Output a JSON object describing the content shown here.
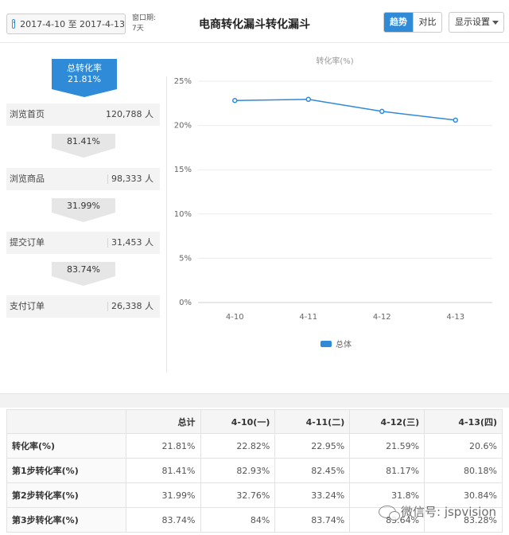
{
  "header": {
    "date_range": "2017-4-10 至 2017-4-13",
    "window_label": "窗口期:",
    "window_value": "7天",
    "title": "电商转化漏斗转化漏斗",
    "tab_trend": "趋势",
    "tab_compare": "对比",
    "settings": "显示设置"
  },
  "funnel": {
    "total_label": "总转化率",
    "total_rate": "21.81%",
    "stages": [
      {
        "name": "浏览首页",
        "value": "120,788 人"
      },
      {
        "name": "浏览商品",
        "value": "98,333 人"
      },
      {
        "name": "提交订单",
        "value": "31,453 人"
      },
      {
        "name": "支付订单",
        "value": "26,338 人"
      }
    ],
    "conversions": [
      "81.41%",
      "31.99%",
      "83.74%"
    ]
  },
  "chart_data": {
    "type": "line",
    "title": "转化率(%)",
    "categories": [
      "4-10",
      "4-11",
      "4-12",
      "4-13"
    ],
    "series": [
      {
        "name": "总体",
        "values": [
          22.82,
          22.95,
          21.59,
          20.6
        ],
        "color": "#2f8ad8"
      }
    ],
    "ylim": [
      0,
      25
    ],
    "yticks": [
      "0%",
      "5%",
      "10%",
      "15%",
      "20%",
      "25%"
    ],
    "ytick_values": [
      0,
      5,
      10,
      15,
      20,
      25
    ],
    "grid": true,
    "legend": "bottom"
  },
  "table": {
    "headers": [
      "",
      "总计",
      "4-10(一)",
      "4-11(二)",
      "4-12(三)",
      "4-13(四)"
    ],
    "rows": [
      {
        "label": "转化率(%)",
        "cells": [
          "21.81%",
          "22.82%",
          "22.95%",
          "21.59%",
          "20.6%"
        ]
      },
      {
        "label": "第1步转化率(%)",
        "cells": [
          "81.41%",
          "82.93%",
          "82.45%",
          "81.17%",
          "80.18%"
        ]
      },
      {
        "label": "第2步转化率(%)",
        "cells": [
          "31.99%",
          "32.76%",
          "33.24%",
          "31.8%",
          "30.84%"
        ]
      },
      {
        "label": "第3步转化率(%)",
        "cells": [
          "83.74%",
          "84%",
          "83.74%",
          "83.64%",
          "83.28%"
        ]
      }
    ]
  },
  "watermark": "微信号: jspvision"
}
